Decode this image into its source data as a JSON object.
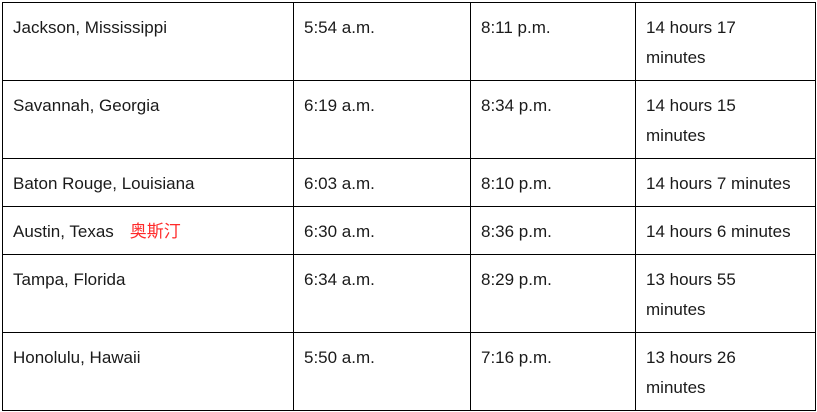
{
  "rows": [
    {
      "city": "Jackson, Mississippi",
      "sunrise": "5:54 a.m.",
      "sunset": "8:11 p.m.",
      "daylight": "14 hours 17 minutes"
    },
    {
      "city": "Savannah, Georgia",
      "sunrise": "6:19 a.m.",
      "sunset": "8:34 p.m.",
      "daylight": "14 hours 15 minutes"
    },
    {
      "city": "Baton Rouge, Louisiana",
      "sunrise": "6:03 a.m.",
      "sunset": "8:10 p.m.",
      "daylight": "14 hours 7 minutes"
    },
    {
      "city": "Austin, Texas",
      "note": "奥斯汀",
      "sunrise": "6:30 a.m.",
      "sunset": "8:36 p.m.",
      "daylight": "14 hours 6 minutes"
    },
    {
      "city": "Tampa, Florida",
      "sunrise": "6:34 a.m.",
      "sunset": "8:29 p.m.",
      "daylight": "13 hours 55 minutes"
    },
    {
      "city": "Honolulu, Hawaii",
      "sunrise": "5:50 a.m.",
      "sunset": "7:16 p.m.",
      "daylight": "13 hours 26 minutes"
    }
  ],
  "colors": {
    "note": "#ff2a2a",
    "border": "#000000",
    "text": "#1a1a1a"
  }
}
